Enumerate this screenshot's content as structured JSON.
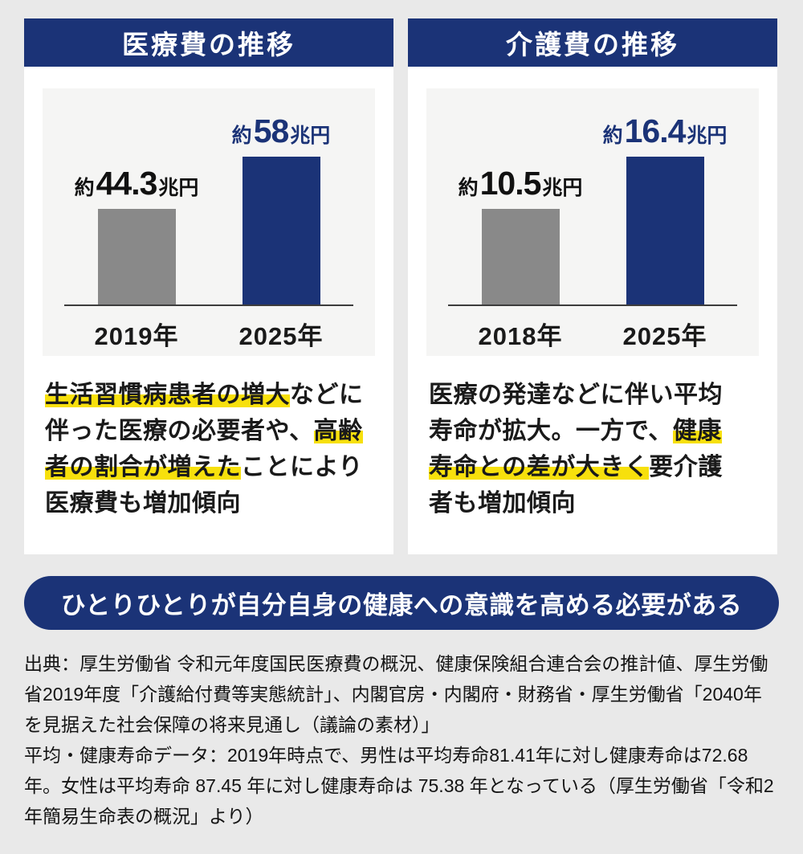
{
  "colors": {
    "navy": "#1b3377",
    "gray_bar": "#898989",
    "highlight_yellow": "#f7e00c",
    "page_background": "#e9e9e9",
    "chart_background": "#f5f5f4",
    "card_background": "#ffffff"
  },
  "cards": [
    {
      "title": "医療費の推移",
      "chart": {
        "bars": [
          {
            "prefix": "約",
            "value": "44.3",
            "unit": "兆円",
            "year": "2019年"
          },
          {
            "prefix": "約",
            "value": "58",
            "unit": "兆円",
            "year": "2025年"
          }
        ]
      },
      "description": {
        "text": "生活習慣病患者の増大などに伴った医療の必要者や、高齢者の割合が増えたことにより医療費も増加傾向",
        "lines": [
          [
            {
              "t": "生活習慣病患者の増大",
              "h": true
            },
            {
              "t": "などに",
              "h": false
            }
          ],
          [
            {
              "t": "伴った医療の必要者や、",
              "h": false
            },
            {
              "t": "高齢",
              "h": true
            }
          ],
          [
            {
              "t": "者の割合が増えた",
              "h": true
            },
            {
              "t": "ことにより",
              "h": false
            }
          ],
          [
            {
              "t": "医療費も増加傾向",
              "h": false
            }
          ]
        ]
      }
    },
    {
      "title": "介護費の推移",
      "chart": {
        "bars": [
          {
            "prefix": "約",
            "value": "10.5",
            "unit": "兆円",
            "year": "2018年"
          },
          {
            "prefix": "約",
            "value": "16.4",
            "unit": "兆円",
            "year": "2025年"
          }
        ]
      },
      "description": {
        "text": "医療の発達などに伴い平均寿命が拡大。一方で、健康寿命との差が大きく要介護者も増加傾向",
        "lines": [
          [
            {
              "t": "医療の発達などに伴い平均",
              "h": false
            }
          ],
          [
            {
              "t": "寿命が拡大。一方で、",
              "h": false
            },
            {
              "t": "健康",
              "h": true
            }
          ],
          [
            {
              "t": "寿命との差が大きく",
              "h": true
            },
            {
              "t": "要介護",
              "h": false
            }
          ],
          [
            {
              "t": "者も増加傾向",
              "h": false
            }
          ]
        ]
      }
    }
  ],
  "banner": {
    "text": "ひとりひとりが自分自身の健康への意識を高める必要がある"
  },
  "footer": {
    "paragraphs": [
      "出典：厚生労働省 令和元年度国民医療費の概況、健康保険組合連合会の推計値、厚生労働省2019年度「介護給付費等実態統計」、内閣官房・内閣府・財務省・厚生労働省「2040年を見据えた社会保障の将来見通し（議論の素材）」",
      "平均・健康寿命データ：2019年時点で、男性は平均寿命81.41年に対し健康寿命は72.68年。女性は平均寿命 87.45 年に対し健康寿命は 75.38 年となっている（厚生労働省「令和2年簡易生命表の概況」より）"
    ]
  },
  "chart_data": [
    {
      "type": "bar",
      "title": "医療費の推移",
      "categories": [
        "2019年",
        "2025年"
      ],
      "values": [
        44.3,
        58
      ],
      "value_labels": [
        "約44.3兆円",
        "約58兆円"
      ],
      "unit": "兆円",
      "bar_colors": [
        "#898989",
        "#1b3377"
      ],
      "xlabel": "",
      "ylabel": "",
      "grid": false,
      "legend": false
    },
    {
      "type": "bar",
      "title": "介護費の推移",
      "categories": [
        "2018年",
        "2025年"
      ],
      "values": [
        10.5,
        16.4
      ],
      "value_labels": [
        "約10.5兆円",
        "約16.4兆円"
      ],
      "unit": "兆円",
      "bar_colors": [
        "#898989",
        "#1b3377"
      ],
      "xlabel": "",
      "ylabel": "",
      "grid": false,
      "legend": false
    }
  ]
}
